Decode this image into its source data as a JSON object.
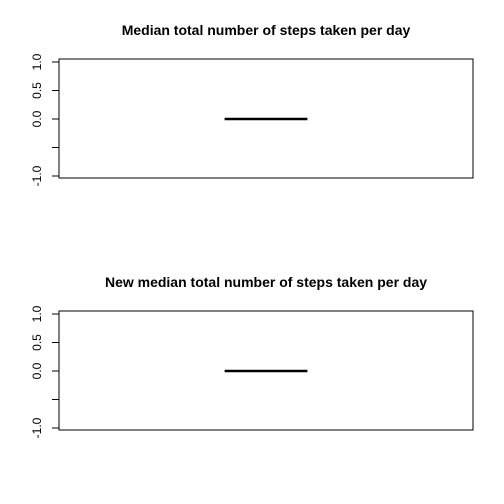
{
  "chart_data": [
    {
      "type": "line",
      "title": "Median total number of steps taken per day",
      "xlabel": "",
      "ylabel": "",
      "ylim": [
        -1.0,
        1.0
      ],
      "yticks": [
        -1.0,
        -0.5,
        0.0,
        0.5,
        1.0
      ],
      "ytick_labels": [
        "-1.0",
        "",
        "0.0",
        "0.5",
        "1.0"
      ],
      "xlim": [
        0,
        1
      ],
      "grid": false,
      "series": [
        {
          "x": [
            0.4,
            0.6
          ],
          "values": [
            0.0,
            0.0
          ],
          "color": "#000000"
        }
      ]
    },
    {
      "type": "line",
      "title": "New median total number of steps taken per day",
      "xlabel": "",
      "ylabel": "",
      "ylim": [
        -1.0,
        1.0
      ],
      "yticks": [
        -1.0,
        -0.5,
        0.0,
        0.5,
        1.0
      ],
      "ytick_labels": [
        "-1.0",
        "",
        "0.0",
        "0.5",
        "1.0"
      ],
      "xlim": [
        0,
        1
      ],
      "grid": false,
      "series": [
        {
          "x": [
            0.4,
            0.6
          ],
          "values": [
            0.0,
            0.0
          ],
          "color": "#000000"
        }
      ]
    }
  ]
}
